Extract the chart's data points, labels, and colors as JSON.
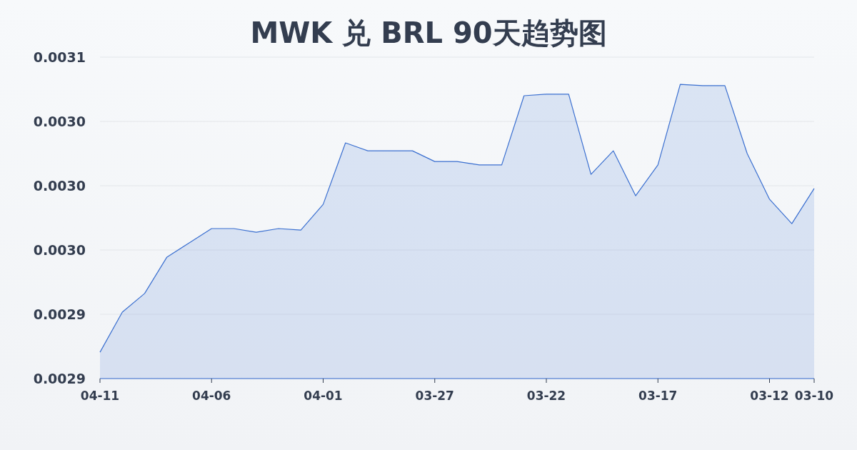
{
  "chart_data": {
    "type": "area",
    "title": "MWK 兑 BRL 90天趋势图",
    "categories": [
      "04-11",
      null,
      null,
      null,
      null,
      "04-06",
      null,
      null,
      null,
      null,
      "04-01",
      null,
      null,
      null,
      null,
      "03-27",
      null,
      null,
      null,
      null,
      "03-22",
      null,
      null,
      null,
      null,
      "03-17",
      null,
      null,
      null,
      null,
      "03-12",
      null,
      "03-10"
    ],
    "values": [
      0.0029223,
      0.002941,
      0.0029497,
      0.0029667,
      0.0029733,
      0.00298,
      0.00298,
      0.0029783,
      0.00298,
      0.0029793,
      0.0029913,
      0.00302,
      0.0030163,
      0.0030163,
      0.0030163,
      0.0030113,
      0.0030113,
      0.0030097,
      0.0030097,
      0.003042,
      0.0030427,
      0.0030427,
      0.0030053,
      0.0030163,
      0.0029953,
      0.0030097,
      0.0030473,
      0.0030467,
      0.0030467,
      0.003015,
      0.0029937,
      0.0029823,
      0.0029987
    ],
    "color": "#3a6fd0",
    "ylim": [
      0.00291,
      0.00306
    ],
    "yticks": [
      {
        "value": 0.00291,
        "label": "0.0029"
      },
      {
        "value": 0.00294,
        "label": "0.0029"
      },
      {
        "value": 0.00297,
        "label": "0.0030"
      },
      {
        "value": 0.003,
        "label": "0.0030"
      },
      {
        "value": 0.00303,
        "label": "0.0030"
      },
      {
        "value": 0.00306,
        "label": "0.0031"
      }
    ],
    "grid": "y"
  }
}
